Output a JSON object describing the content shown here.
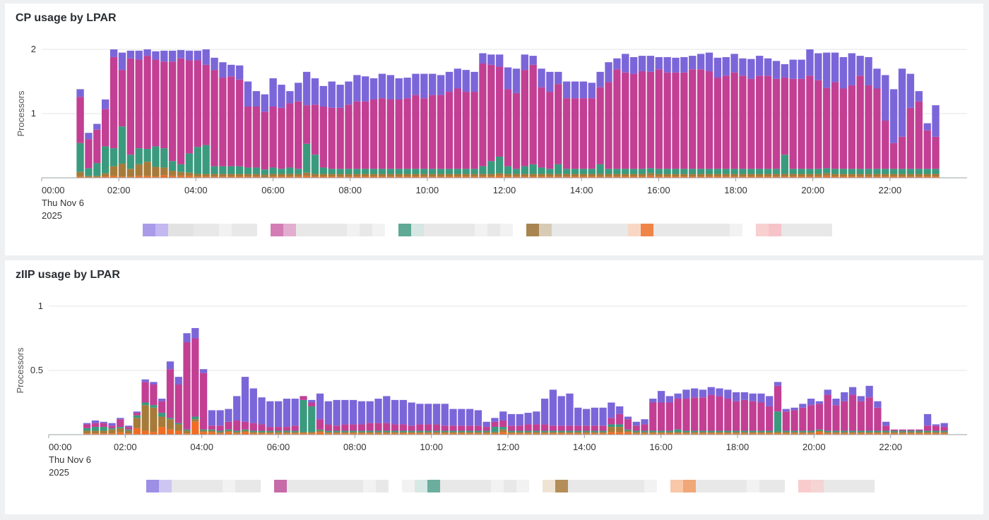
{
  "chart_data": [
    {
      "type": "bar",
      "stacked": true,
      "title": "CP usage by LPAR",
      "ylabel": "Processors",
      "xlabel": "",
      "ylim": [
        0,
        2
      ],
      "yticks": [
        1,
        2
      ],
      "ytick_labels": [
        "1",
        "2"
      ],
      "xticks": [
        "00:00",
        "02:00",
        "04:00",
        "06:00",
        "08:00",
        "10:00",
        "12:00",
        "14:00",
        "16:00",
        "18:00",
        "20:00",
        "22:00"
      ],
      "x_first_label_extra": [
        "Thu Nov 6",
        "2025"
      ],
      "grid": true,
      "legend": "bottom, names obscured",
      "series_colors": [
        "#f06d23",
        "#a67b3a",
        "#3a9a7e",
        "#c23f93",
        "#7b66d9"
      ],
      "totals": [
        1.38,
        0.7,
        0.84,
        1.22,
        2.0,
        1.95,
        1.98,
        1.98,
        2.0,
        1.97,
        1.98,
        1.98,
        1.99,
        1.98,
        1.98,
        2.0,
        1.87,
        1.8,
        1.76,
        1.75,
        1.5,
        1.35,
        1.3,
        1.55,
        1.45,
        1.35,
        1.48,
        1.65,
        1.55,
        1.43,
        1.5,
        1.45,
        1.5,
        1.6,
        1.58,
        1.55,
        1.62,
        1.6,
        1.55,
        1.56,
        1.62,
        1.62,
        1.62,
        1.6,
        1.65,
        1.7,
        1.68,
        1.65,
        1.94,
        1.92,
        1.92,
        1.72,
        1.7,
        1.92,
        1.9,
        1.7,
        1.65,
        1.65,
        1.5,
        1.5,
        1.5,
        1.48,
        1.65,
        1.8,
        1.86,
        1.93,
        1.88,
        1.9,
        1.9,
        1.88,
        1.88,
        1.87,
        1.88,
        1.9,
        1.93,
        1.95,
        1.87,
        1.88,
        1.93,
        1.86,
        1.85,
        1.9,
        1.86,
        1.82,
        1.77,
        1.84,
        1.84,
        2.0,
        1.94,
        1.95,
        1.95,
        1.88,
        1.94,
        1.9,
        1.88,
        1.7,
        1.6,
        1.38,
        1.7,
        1.62,
        1.35,
        0.85,
        1.13
      ],
      "zero_series": [
        0.02,
        0.01,
        0.01,
        0.02,
        0.03,
        0.02,
        0.02,
        0.03,
        0.03,
        0.02,
        0.04,
        0.03,
        0.03,
        0.03,
        0.02,
        0.02,
        0.02,
        0.02,
        0.02,
        0.02,
        0.02,
        0.02,
        0.01,
        0.02,
        0.02,
        0.02,
        0.02,
        0.03,
        0.02,
        0.02,
        0.02,
        0.02,
        0.02,
        0.02,
        0.02,
        0.02,
        0.02,
        0.02,
        0.02,
        0.02,
        0.02,
        0.02,
        0.02,
        0.02,
        0.02,
        0.02,
        0.02,
        0.02,
        0.02,
        0.02,
        0.03,
        0.02,
        0.02,
        0.02,
        0.02,
        0.02,
        0.02,
        0.02,
        0.02,
        0.02,
        0.02,
        0.02,
        0.02,
        0.02,
        0.02,
        0.02,
        0.02,
        0.02,
        0.03,
        0.02,
        0.02,
        0.02,
        0.02,
        0.02,
        0.02,
        0.02,
        0.02,
        0.02,
        0.02,
        0.02,
        0.02,
        0.02,
        0.02,
        0.02,
        0.02,
        0.02,
        0.02,
        0.02,
        0.02,
        0.03,
        0.02,
        0.02,
        0.02,
        0.02,
        0.02,
        0.02,
        0.02,
        0.02,
        0.02,
        0.02,
        0.02,
        0.02,
        0.02
      ],
      "s2": [
        0.07,
        0.02,
        0.02,
        0.05,
        0.15,
        0.2,
        0.12,
        0.18,
        0.22,
        0.15,
        0.12,
        0.08,
        0.06,
        0.05,
        0.04,
        0.04,
        0.04,
        0.04,
        0.04,
        0.04,
        0.04,
        0.04,
        0.04,
        0.04,
        0.04,
        0.04,
        0.04,
        0.05,
        0.04,
        0.04,
        0.04,
        0.04,
        0.04,
        0.04,
        0.04,
        0.04,
        0.04,
        0.04,
        0.04,
        0.04,
        0.04,
        0.04,
        0.04,
        0.04,
        0.04,
        0.04,
        0.04,
        0.04,
        0.04,
        0.04,
        0.04,
        0.04,
        0.04,
        0.04,
        0.04,
        0.04,
        0.04,
        0.04,
        0.04,
        0.04,
        0.04,
        0.04,
        0.04,
        0.04,
        0.04,
        0.04,
        0.04,
        0.04,
        0.04,
        0.04,
        0.04,
        0.04,
        0.04,
        0.04,
        0.04,
        0.04,
        0.04,
        0.04,
        0.04,
        0.04,
        0.04,
        0.04,
        0.04,
        0.04,
        0.04,
        0.04,
        0.04,
        0.04,
        0.04,
        0.04,
        0.04,
        0.04,
        0.04,
        0.04,
        0.04,
        0.04,
        0.04,
        0.04,
        0.04,
        0.04,
        0.04,
        0.04,
        0.04
      ],
      "s3": [
        0.45,
        0.12,
        0.2,
        0.42,
        0.28,
        0.58,
        0.22,
        0.25,
        0.2,
        0.32,
        0.3,
        0.15,
        0.12,
        0.3,
        0.42,
        0.45,
        0.12,
        0.12,
        0.12,
        0.12,
        0.1,
        0.1,
        0.08,
        0.1,
        0.08,
        0.1,
        0.08,
        0.45,
        0.3,
        0.1,
        0.08,
        0.08,
        0.08,
        0.08,
        0.08,
        0.08,
        0.08,
        0.08,
        0.08,
        0.08,
        0.08,
        0.08,
        0.08,
        0.08,
        0.08,
        0.08,
        0.08,
        0.08,
        0.12,
        0.2,
        0.26,
        0.12,
        0.08,
        0.12,
        0.15,
        0.1,
        0.08,
        0.15,
        0.08,
        0.08,
        0.08,
        0.08,
        0.15,
        0.08,
        0.08,
        0.08,
        0.08,
        0.08,
        0.08,
        0.08,
        0.08,
        0.08,
        0.08,
        0.08,
        0.08,
        0.08,
        0.08,
        0.08,
        0.08,
        0.08,
        0.08,
        0.08,
        0.08,
        0.08,
        0.3,
        0.08,
        0.08,
        0.08,
        0.08,
        0.08,
        0.08,
        0.08,
        0.08,
        0.08,
        0.08,
        0.08,
        0.08,
        0.08,
        0.08,
        0.08,
        0.08,
        0.08,
        0.08
      ],
      "s4": [
        0.72,
        0.45,
        0.52,
        0.58,
        1.42,
        0.88,
        1.5,
        1.38,
        1.45,
        1.35,
        1.35,
        1.55,
        1.65,
        1.45,
        1.35,
        1.25,
        1.5,
        1.38,
        1.4,
        1.35,
        0.95,
        0.95,
        0.9,
        0.95,
        0.95,
        1.0,
        1.05,
        0.6,
        0.78,
        0.95,
        0.95,
        0.95,
        1.0,
        1.05,
        1.05,
        1.08,
        1.1,
        1.08,
        1.08,
        1.1,
        1.15,
        1.1,
        1.15,
        1.15,
        1.2,
        1.25,
        1.2,
        1.2,
        1.6,
        1.5,
        1.4,
        1.2,
        1.18,
        1.5,
        1.55,
        1.25,
        1.2,
        1.25,
        1.1,
        1.1,
        1.1,
        1.1,
        1.2,
        1.35,
        1.55,
        1.5,
        1.48,
        1.52,
        1.5,
        1.55,
        1.5,
        1.5,
        1.5,
        1.55,
        1.55,
        1.52,
        1.42,
        1.45,
        1.5,
        1.45,
        1.4,
        1.45,
        1.45,
        1.4,
        1.2,
        1.4,
        1.4,
        1.45,
        1.38,
        1.25,
        1.35,
        1.25,
        1.3,
        1.45,
        1.3,
        1.25,
        0.75,
        0.4,
        0.5,
        0.95,
        1.05,
        0.6,
        0.5
      ],
      "xlim_hours": [
        0,
        24
      ],
      "first_bar_hour": 1.0,
      "bar_step_hours": 0.2175
    },
    {
      "type": "bar",
      "stacked": true,
      "title": "zIIP usage by LPAR",
      "ylabel": "Processors",
      "xlabel": "",
      "ylim": [
        0,
        1
      ],
      "yticks": [
        0.5,
        1
      ],
      "ytick_labels": [
        "0.5",
        "1"
      ],
      "xticks": [
        "00:00",
        "02:00",
        "04:00",
        "06:00",
        "08:00",
        "10:00",
        "12:00",
        "14:00",
        "16:00",
        "18:00",
        "20:00",
        "22:00"
      ],
      "x_first_label_extra": [
        "Thu Nov 6",
        "2025"
      ],
      "grid": true,
      "legend": "bottom, names obscured",
      "series_colors": [
        "#f06d23",
        "#a67b3a",
        "#3a9a7e",
        "#c23f93",
        "#7b66d9"
      ],
      "totals": [
        0.09,
        0.11,
        0.1,
        0.09,
        0.13,
        0.07,
        0.18,
        0.43,
        0.41,
        0.28,
        0.57,
        0.45,
        0.79,
        0.83,
        0.51,
        0.19,
        0.19,
        0.2,
        0.3,
        0.45,
        0.36,
        0.29,
        0.26,
        0.26,
        0.28,
        0.28,
        0.3,
        0.27,
        0.32,
        0.26,
        0.27,
        0.27,
        0.27,
        0.26,
        0.26,
        0.28,
        0.3,
        0.27,
        0.27,
        0.25,
        0.24,
        0.24,
        0.24,
        0.24,
        0.2,
        0.2,
        0.2,
        0.19,
        0.1,
        0.13,
        0.18,
        0.16,
        0.16,
        0.17,
        0.18,
        0.28,
        0.35,
        0.3,
        0.32,
        0.21,
        0.2,
        0.21,
        0.21,
        0.25,
        0.22,
        0.14,
        0.1,
        0.12,
        0.28,
        0.34,
        0.3,
        0.32,
        0.35,
        0.36,
        0.35,
        0.37,
        0.36,
        0.35,
        0.33,
        0.33,
        0.32,
        0.32,
        0.3,
        0.41,
        0.2,
        0.21,
        0.24,
        0.28,
        0.26,
        0.35,
        0.28,
        0.33,
        0.37,
        0.3,
        0.38,
        0.26,
        0.1,
        0.02,
        0.02,
        0.01,
        0.02,
        0.16,
        0.08,
        0.09
      ],
      "s1": [
        0.01,
        0.01,
        0.01,
        0.01,
        0.02,
        0.01,
        0.05,
        0.03,
        0.02,
        0.06,
        0.04,
        0.03,
        0.01,
        0.1,
        0.02,
        0.02,
        0.01,
        0.02,
        0.01,
        0.02,
        0.01,
        0.01,
        0.01,
        0.01,
        0.01,
        0.01,
        0.01,
        0.01,
        0.02,
        0.01,
        0.01,
        0.01,
        0.01,
        0.01,
        0.01,
        0.01,
        0.01,
        0.01,
        0.01,
        0.01,
        0.01,
        0.01,
        0.01,
        0.01,
        0.01,
        0.01,
        0.01,
        0.01,
        0.01,
        0.01,
        0.02,
        0.01,
        0.01,
        0.01,
        0.01,
        0.01,
        0.01,
        0.01,
        0.01,
        0.01,
        0.01,
        0.01,
        0.01,
        0.02,
        0.02,
        0.02,
        0.01,
        0.01,
        0.01,
        0.01,
        0.01,
        0.01,
        0.01,
        0.01,
        0.01,
        0.01,
        0.01,
        0.01,
        0.01,
        0.01,
        0.01,
        0.01,
        0.01,
        0.01,
        0.01,
        0.01,
        0.01,
        0.01,
        0.02,
        0.01,
        0.01,
        0.01,
        0.01,
        0.01,
        0.01,
        0.01,
        0.01,
        0.01,
        0.01,
        0.01,
        0.01,
        0.01,
        0.01,
        0.01
      ],
      "s2": [
        0.02,
        0.02,
        0.02,
        0.03,
        0.03,
        0.02,
        0.08,
        0.2,
        0.19,
        0.08,
        0.08,
        0.05,
        0.02,
        0.02,
        0.01,
        0.01,
        0.01,
        0.01,
        0.01,
        0.01,
        0.01,
        0.01,
        0.01,
        0.01,
        0.01,
        0.01,
        0.01,
        0.01,
        0.01,
        0.01,
        0.01,
        0.01,
        0.01,
        0.01,
        0.01,
        0.01,
        0.01,
        0.01,
        0.01,
        0.01,
        0.01,
        0.01,
        0.01,
        0.01,
        0.01,
        0.01,
        0.01,
        0.01,
        0.01,
        0.01,
        0.02,
        0.01,
        0.01,
        0.01,
        0.01,
        0.01,
        0.01,
        0.01,
        0.01,
        0.01,
        0.01,
        0.01,
        0.01,
        0.04,
        0.04,
        0.01,
        0.01,
        0.01,
        0.01,
        0.01,
        0.01,
        0.01,
        0.01,
        0.01,
        0.01,
        0.01,
        0.01,
        0.01,
        0.01,
        0.01,
        0.01,
        0.01,
        0.01,
        0.01,
        0.01,
        0.01,
        0.01,
        0.01,
        0.01,
        0.01,
        0.01,
        0.01,
        0.01,
        0.01,
        0.01,
        0.01,
        0.01,
        0.01,
        0.01,
        0.01,
        0.01,
        0.01,
        0.01,
        0.01
      ],
      "s3": [
        0.02,
        0.03,
        0.03,
        0.01,
        0.01,
        0.01,
        0.02,
        0.02,
        0.02,
        0.03,
        0.01,
        0.01,
        0.01,
        0.02,
        0.01,
        0.01,
        0.01,
        0.01,
        0.01,
        0.01,
        0.01,
        0.01,
        0.01,
        0.01,
        0.01,
        0.01,
        0.25,
        0.2,
        0.01,
        0.01,
        0.01,
        0.01,
        0.01,
        0.01,
        0.01,
        0.01,
        0.01,
        0.01,
        0.01,
        0.01,
        0.01,
        0.01,
        0.01,
        0.01,
        0.01,
        0.01,
        0.01,
        0.01,
        0.01,
        0.04,
        0.02,
        0.01,
        0.01,
        0.01,
        0.01,
        0.01,
        0.01,
        0.01,
        0.01,
        0.01,
        0.01,
        0.01,
        0.01,
        0.02,
        0.02,
        0.01,
        0.01,
        0.01,
        0.01,
        0.01,
        0.01,
        0.02,
        0.01,
        0.01,
        0.01,
        0.01,
        0.01,
        0.01,
        0.01,
        0.01,
        0.01,
        0.01,
        0.01,
        0.16,
        0.01,
        0.01,
        0.01,
        0.01,
        0.01,
        0.01,
        0.01,
        0.01,
        0.01,
        0.01,
        0.01,
        0.01,
        0.01,
        0.01,
        0.01,
        0.01,
        0.01,
        0.01,
        0.01,
        0.01
      ],
      "s4": [
        0.03,
        0.03,
        0.03,
        0.02,
        0.06,
        0.02,
        0.02,
        0.16,
        0.16,
        0.09,
        0.38,
        0.3,
        0.68,
        0.61,
        0.44,
        0.03,
        0.04,
        0.06,
        0.08,
        0.06,
        0.06,
        0.05,
        0.03,
        0.03,
        0.03,
        0.04,
        0.03,
        0.03,
        0.08,
        0.05,
        0.04,
        0.05,
        0.05,
        0.05,
        0.06,
        0.06,
        0.06,
        0.05,
        0.05,
        0.04,
        0.05,
        0.05,
        0.05,
        0.04,
        0.04,
        0.04,
        0.04,
        0.04,
        0.03,
        0.04,
        0.05,
        0.04,
        0.04,
        0.05,
        0.05,
        0.05,
        0.04,
        0.04,
        0.04,
        0.04,
        0.04,
        0.04,
        0.04,
        0.05,
        0.08,
        0.08,
        0.04,
        0.05,
        0.22,
        0.22,
        0.22,
        0.24,
        0.25,
        0.26,
        0.26,
        0.28,
        0.27,
        0.25,
        0.23,
        0.24,
        0.23,
        0.22,
        0.19,
        0.2,
        0.15,
        0.16,
        0.18,
        0.2,
        0.2,
        0.28,
        0.2,
        0.23,
        0.28,
        0.23,
        0.26,
        0.18,
        0.04,
        0.01,
        0.01,
        0.01,
        0.01,
        0.04,
        0.04,
        0.03
      ],
      "xlim_hours": [
        0,
        24
      ],
      "first_bar_hour": 1.0,
      "bar_step_hours": 0.2175
    }
  ],
  "legend_cp": [
    {
      "colors": [
        "#a99be8",
        "#c4b8f0",
        "#e2e2e2",
        "#e2e2e2",
        "#e8e8e8",
        "#e8e8e8",
        "#f2f2f2",
        "#e8e8e8",
        "#e8e8e8"
      ]
    },
    {
      "colors": [
        "#d47cb4",
        "#e2aed0",
        "#e8e8e8",
        "#e8e8e8",
        "#e8e8e8",
        "#e8e8e8",
        "#f2f2f2",
        "#e8e8e8",
        "#f2f2f2"
      ]
    },
    {
      "colors": [
        "#5fa996",
        "#d6e6e2",
        "#e8e8e8",
        "#e8e8e8",
        "#e8e8e8",
        "#e8e8e8",
        "#f2f2f2",
        "#e8e8e8",
        "#f2f2f2"
      ]
    },
    {
      "colors": [
        "#a88450",
        "#d8cbb6",
        "#e8e8e8",
        "#e8e8e8",
        "#e8e8e8",
        "#e8e8e8",
        "#e8e8e8",
        "#e8e8e8",
        "#f8d8c4",
        "#f08448",
        "#e8e8e8",
        "#e8e8e8",
        "#e8e8e8",
        "#e8e8e8",
        "#e8e8e8",
        "#e8e8e8",
        "#f2f2f2"
      ]
    },
    {
      "colors": [
        "#f9d0d0",
        "#f6c4c8",
        "#e8e8e8",
        "#e8e8e8",
        "#e8e8e8",
        "#e8e8e8"
      ]
    }
  ],
  "legend_ziip": [
    {
      "colors": [
        "#9d8ee6",
        "#cec6f2",
        "#e8e8e8",
        "#e8e8e8",
        "#e8e8e8",
        "#e8e8e8",
        "#f2f2f2",
        "#e8e8e8",
        "#e8e8e8"
      ]
    },
    {
      "colors": [
        "#c76aa8",
        "#e8e8e8",
        "#e8e8e8",
        "#e8e8e8",
        "#e8e8e8",
        "#e8e8e8",
        "#e8e8e8",
        "#f2f2f2",
        "#e8e8e8"
      ]
    },
    {
      "colors": [
        "#f2f2f2",
        "#d8e8e4",
        "#6cae9e",
        "#e8e8e8",
        "#e8e8e8",
        "#e8e8e8",
        "#e8e8e8",
        "#f2f2f2",
        "#e8e8e8",
        "#f2f2f2"
      ]
    },
    {
      "colors": [
        "#efe4d4",
        "#b48e58",
        "#e8e8e8",
        "#e8e8e8",
        "#e8e8e8",
        "#e8e8e8",
        "#e8e8e8",
        "#e8e8e8",
        "#f2f2f2"
      ]
    },
    {
      "colors": [
        "#f8c8a8",
        "#f0a878",
        "#e8e8e8",
        "#e8e8e8",
        "#e8e8e8",
        "#e8e8e8",
        "#f2f2f2",
        "#e8e8e8",
        "#e8e8e8"
      ]
    },
    {
      "colors": [
        "#f8cccc",
        "#f4d4d4",
        "#e8e8e8",
        "#e8e8e8",
        "#e8e8e8",
        "#e8e8e8"
      ]
    }
  ]
}
